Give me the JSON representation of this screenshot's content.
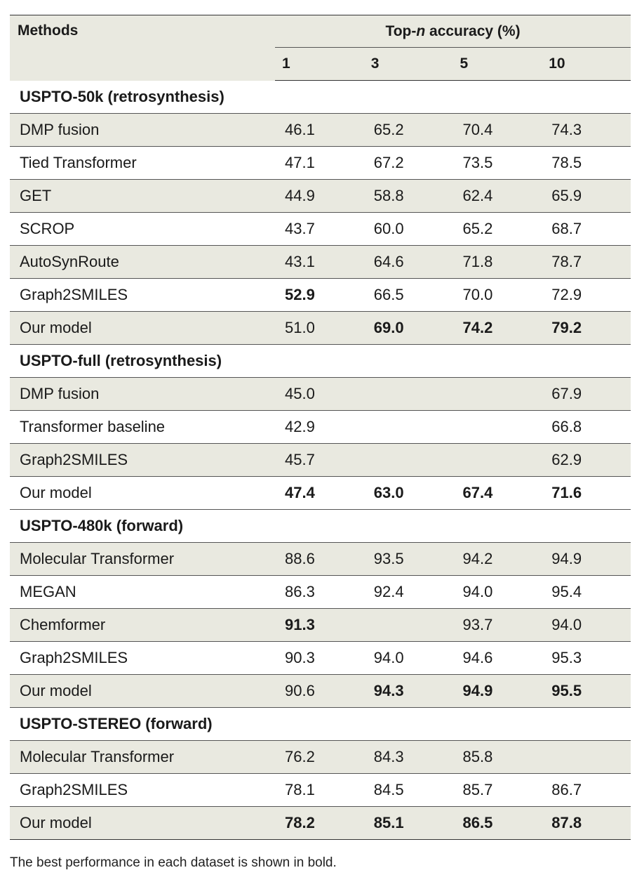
{
  "header": {
    "methods": "Methods",
    "topn_prefix": "Top-",
    "topn_italic": "n",
    "topn_suffix": " accuracy (%)",
    "n_values": [
      "1",
      "3",
      "5",
      "10"
    ]
  },
  "groups": [
    {
      "title": "USPTO-50k (retrosynthesis)",
      "rows": [
        {
          "method": "DMP fusion",
          "values": [
            "46.1",
            "65.2",
            "70.4",
            "74.3"
          ],
          "bold": [
            false,
            false,
            false,
            false
          ]
        },
        {
          "method": "Tied Transformer",
          "values": [
            "47.1",
            "67.2",
            "73.5",
            "78.5"
          ],
          "bold": [
            false,
            false,
            false,
            false
          ]
        },
        {
          "method": "GET",
          "values": [
            "44.9",
            "58.8",
            "62.4",
            "65.9"
          ],
          "bold": [
            false,
            false,
            false,
            false
          ]
        },
        {
          "method": "SCROP",
          "values": [
            "43.7",
            "60.0",
            "65.2",
            "68.7"
          ],
          "bold": [
            false,
            false,
            false,
            false
          ]
        },
        {
          "method": "AutoSynRoute",
          "values": [
            "43.1",
            "64.6",
            "71.8",
            "78.7"
          ],
          "bold": [
            false,
            false,
            false,
            false
          ]
        },
        {
          "method": "Graph2SMILES",
          "values": [
            "52.9",
            "66.5",
            "70.0",
            "72.9"
          ],
          "bold": [
            true,
            false,
            false,
            false
          ]
        },
        {
          "method": "Our model",
          "values": [
            "51.0",
            "69.0",
            "74.2",
            "79.2"
          ],
          "bold": [
            false,
            true,
            true,
            true
          ]
        }
      ]
    },
    {
      "title": "USPTO-full (retrosynthesis)",
      "rows": [
        {
          "method": "DMP fusion",
          "values": [
            "45.0",
            "",
            "",
            "67.9"
          ],
          "bold": [
            false,
            false,
            false,
            false
          ]
        },
        {
          "method": "Transformer baseline",
          "values": [
            "42.9",
            "",
            "",
            "66.8"
          ],
          "bold": [
            false,
            false,
            false,
            false
          ]
        },
        {
          "method": "Graph2SMILES",
          "values": [
            "45.7",
            "",
            "",
            "62.9"
          ],
          "bold": [
            false,
            false,
            false,
            false
          ]
        },
        {
          "method": "Our model",
          "values": [
            "47.4",
            "63.0",
            "67.4",
            "71.6"
          ],
          "bold": [
            true,
            true,
            true,
            true
          ]
        }
      ]
    },
    {
      "title": "USPTO-480k (forward)",
      "rows": [
        {
          "method": "Molecular Transformer",
          "values": [
            "88.6",
            "93.5",
            "94.2",
            "94.9"
          ],
          "bold": [
            false,
            false,
            false,
            false
          ]
        },
        {
          "method": "MEGAN",
          "values": [
            "86.3",
            "92.4",
            "94.0",
            "95.4"
          ],
          "bold": [
            false,
            false,
            false,
            false
          ]
        },
        {
          "method": "Chemformer",
          "values": [
            "91.3",
            "",
            "93.7",
            "94.0"
          ],
          "bold": [
            true,
            false,
            false,
            false
          ]
        },
        {
          "method": "Graph2SMILES",
          "values": [
            "90.3",
            "94.0",
            "94.6",
            "95.3"
          ],
          "bold": [
            false,
            false,
            false,
            false
          ]
        },
        {
          "method": "Our model",
          "values": [
            "90.6",
            "94.3",
            "94.9",
            "95.5"
          ],
          "bold": [
            false,
            true,
            true,
            true
          ]
        }
      ]
    },
    {
      "title": "USPTO-STEREO (forward)",
      "rows": [
        {
          "method": "Molecular Transformer",
          "values": [
            "76.2",
            "84.3",
            "85.8",
            ""
          ],
          "bold": [
            false,
            false,
            false,
            false
          ]
        },
        {
          "method": "Graph2SMILES",
          "values": [
            "78.1",
            "84.5",
            "85.7",
            "86.7"
          ],
          "bold": [
            false,
            false,
            false,
            false
          ]
        },
        {
          "method": "Our model",
          "values": [
            "78.2",
            "85.1",
            "86.5",
            "87.8"
          ],
          "bold": [
            true,
            true,
            true,
            true
          ]
        }
      ]
    }
  ],
  "footnote": "The best performance in each dataset is shown in bold.",
  "colors": {
    "shade": "#e9e9e0",
    "rule": "#555555"
  }
}
